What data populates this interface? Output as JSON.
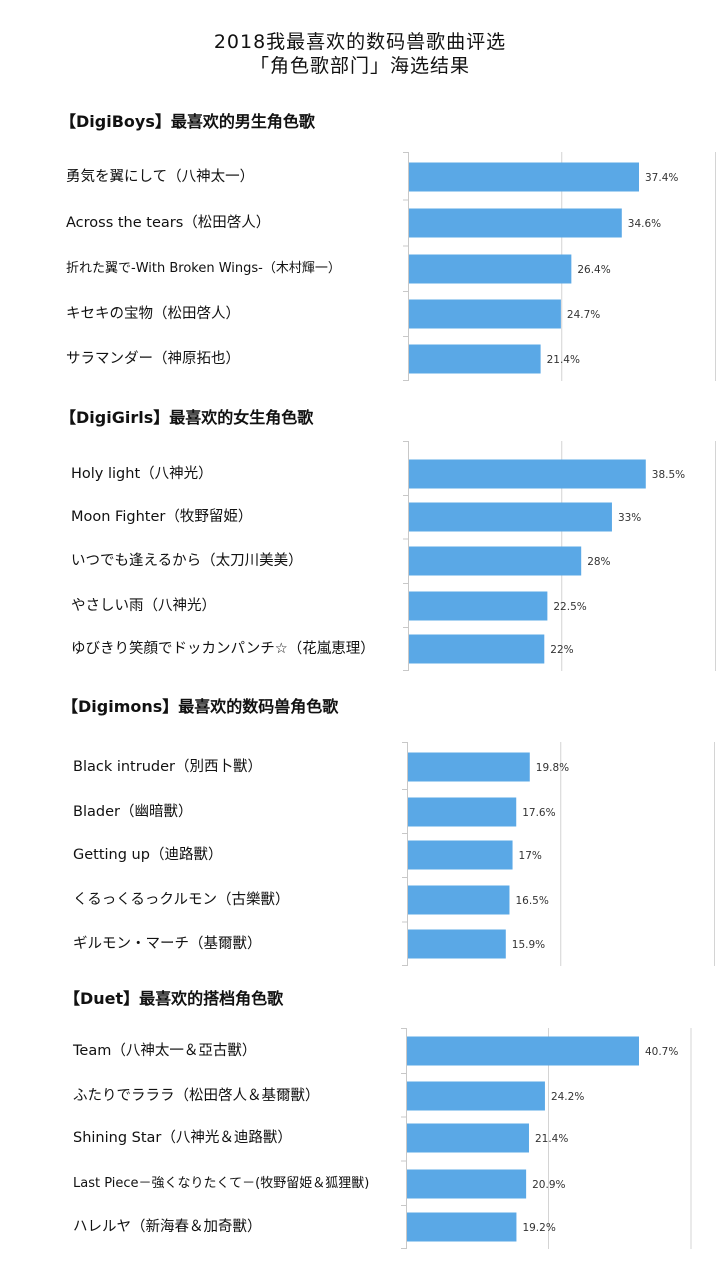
{
  "title_line1": "2018我最喜欢的数码兽歌曲评选",
  "title_line2": "「角色歌部门」海选结果",
  "chart_data": [
    {
      "type": "bar",
      "title": "【DigiBoys】最喜欢的男生角色歌",
      "categories": [
        "勇気を翼にして（八神太一）",
        "Across the tears（松田啓人）",
        "折れた翼で-With Broken Wings-（木村輝一）",
        "キセキの宝物（松田啓人）",
        "サラマンダー（神原拓也）"
      ],
      "values": [
        37.4,
        34.6,
        26.4,
        24.7,
        21.4
      ],
      "value_labels": [
        "37.4%",
        "34.6%",
        "26.4%",
        "24.7%",
        "21.4%"
      ],
      "grid": true
    },
    {
      "type": "bar",
      "title": "【DigiGirls】最喜欢的女生角色歌",
      "categories": [
        "Holy light（八神光）",
        "Moon Fighter（牧野留姫）",
        "いつでも逢えるから（太刀川美美）",
        "やさしい雨（八神光）",
        "ゆびきり笑顔でドッカンパンチ☆（花嵐恵理）"
      ],
      "values": [
        38.5,
        33,
        28,
        22.5,
        22
      ],
      "value_labels": [
        "38.5%",
        "33%",
        "28%",
        "22.5%",
        "22%"
      ],
      "grid": true
    },
    {
      "type": "bar",
      "title": "【Digimons】最喜欢的数码兽角色歌",
      "categories": [
        "Black intruder（別西卜獸）",
        "Blader（幽暗獸）",
        "Getting up（迪路獸）",
        "くるっくるっクルモン（古樂獸）",
        "ギルモン・マーチ（基爾獸）"
      ],
      "values": [
        19.8,
        17.6,
        17,
        16.5,
        15.9
      ],
      "value_labels": [
        "19.8%",
        "17.6%",
        "17%",
        "16.5%",
        "15.9%"
      ],
      "grid": true
    },
    {
      "type": "bar",
      "title": "【Duet】最喜欢的搭档角色歌",
      "categories": [
        "Team（八神太一＆亞古獸）",
        "ふたりでラララ（松田啓人＆基爾獸）",
        "Shining Star（八神光＆迪路獸）",
        "Last Piece－強くなりたくて－(牧野留姫＆狐狸獸)",
        "ハレルヤ（新海春＆加奇獸）"
      ],
      "values": [
        40.7,
        24.2,
        21.4,
        20.9,
        19.2
      ],
      "value_labels": [
        "40.7%",
        "24.2%",
        "21.4%",
        "20.9%",
        "19.2%"
      ],
      "grid": true
    }
  ]
}
